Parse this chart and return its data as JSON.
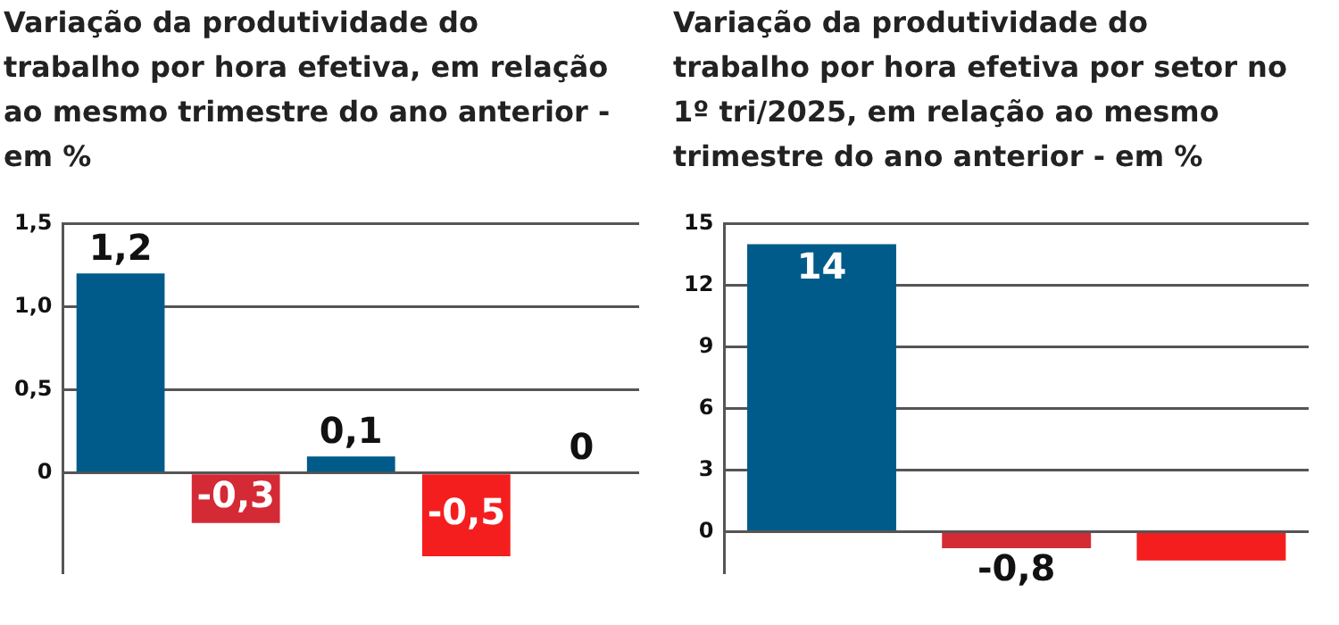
{
  "chart_data": [
    {
      "type": "bar",
      "title": "Variação da produtividade do trabalho por hora efetiva, em relação ao mesmo trimestre do ano anterior - em %",
      "categories": [
        null,
        null,
        null,
        null,
        null
      ],
      "values": [
        1.2,
        -0.3,
        0.1,
        -0.5,
        0
      ],
      "colors": [
        "#005b8a",
        "#d42a36",
        "#005b8a",
        "#f41e1e",
        "#005b8a"
      ],
      "value_labels": [
        "1,2",
        "-0,3",
        "0,1",
        "-0,5",
        "0"
      ],
      "ylim": [
        -0.6,
        1.5
      ],
      "yticks": [
        0,
        {
          "value": 0.5,
          "label": "0,5"
        },
        {
          "value": 1,
          "label": "1,0"
        },
        {
          "value": 1.5,
          "label": "1,5"
        }
      ],
      "grid": "y",
      "tick_labels": "y"
    },
    {
      "type": "bar",
      "title": "Variação da produtividade do trabalho por hora efetiva por setor no 1º tri/2025, em relação ao mesmo trimestre do ano anterior - em %",
      "categories": [
        null,
        null,
        null
      ],
      "values": [
        14,
        -0.8,
        -1.4
      ],
      "colors": [
        "#005b8a",
        "#d42a36",
        "#f41e1e"
      ],
      "value_labels": [
        "14",
        "-0,8",
        null
      ],
      "ylim": [
        -2,
        15
      ],
      "yticks": [
        0,
        3,
        6,
        9,
        12,
        15
      ],
      "grid": "y",
      "tick_labels": "y"
    }
  ]
}
